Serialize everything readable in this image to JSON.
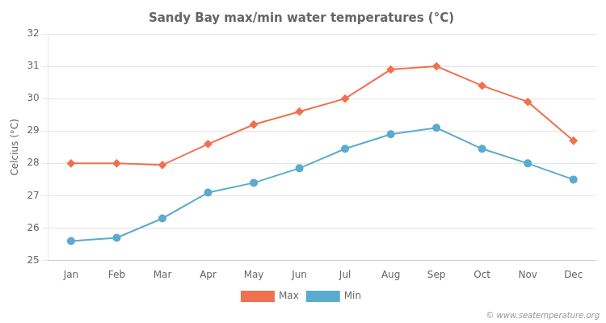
{
  "chart_data": {
    "type": "line",
    "title": "Sandy Bay max/min water temperatures (°C)",
    "ylabel": "Celcius (°C)",
    "categories": [
      "Jan",
      "Feb",
      "Mar",
      "Apr",
      "May",
      "Jun",
      "Jul",
      "Aug",
      "Sep",
      "Oct",
      "Nov",
      "Dec"
    ],
    "series": [
      {
        "name": "Max",
        "color": "#f07050",
        "marker": "diamond",
        "values": [
          28.0,
          28.0,
          27.95,
          28.6,
          29.2,
          29.6,
          30.0,
          30.9,
          31.0,
          30.4,
          29.9,
          28.7
        ]
      },
      {
        "name": "Min",
        "color": "#5aabcf",
        "marker": "circle",
        "values": [
          25.6,
          25.7,
          26.3,
          27.1,
          27.4,
          27.85,
          28.45,
          28.9,
          29.1,
          28.45,
          28.0,
          27.5
        ]
      }
    ],
    "ylim": [
      25,
      32
    ],
    "yticks": [
      25,
      26,
      27,
      28,
      29,
      30,
      31,
      32
    ],
    "grid": true,
    "legend": "bottom",
    "annotations": [
      "© www.seatemperature.org"
    ]
  }
}
